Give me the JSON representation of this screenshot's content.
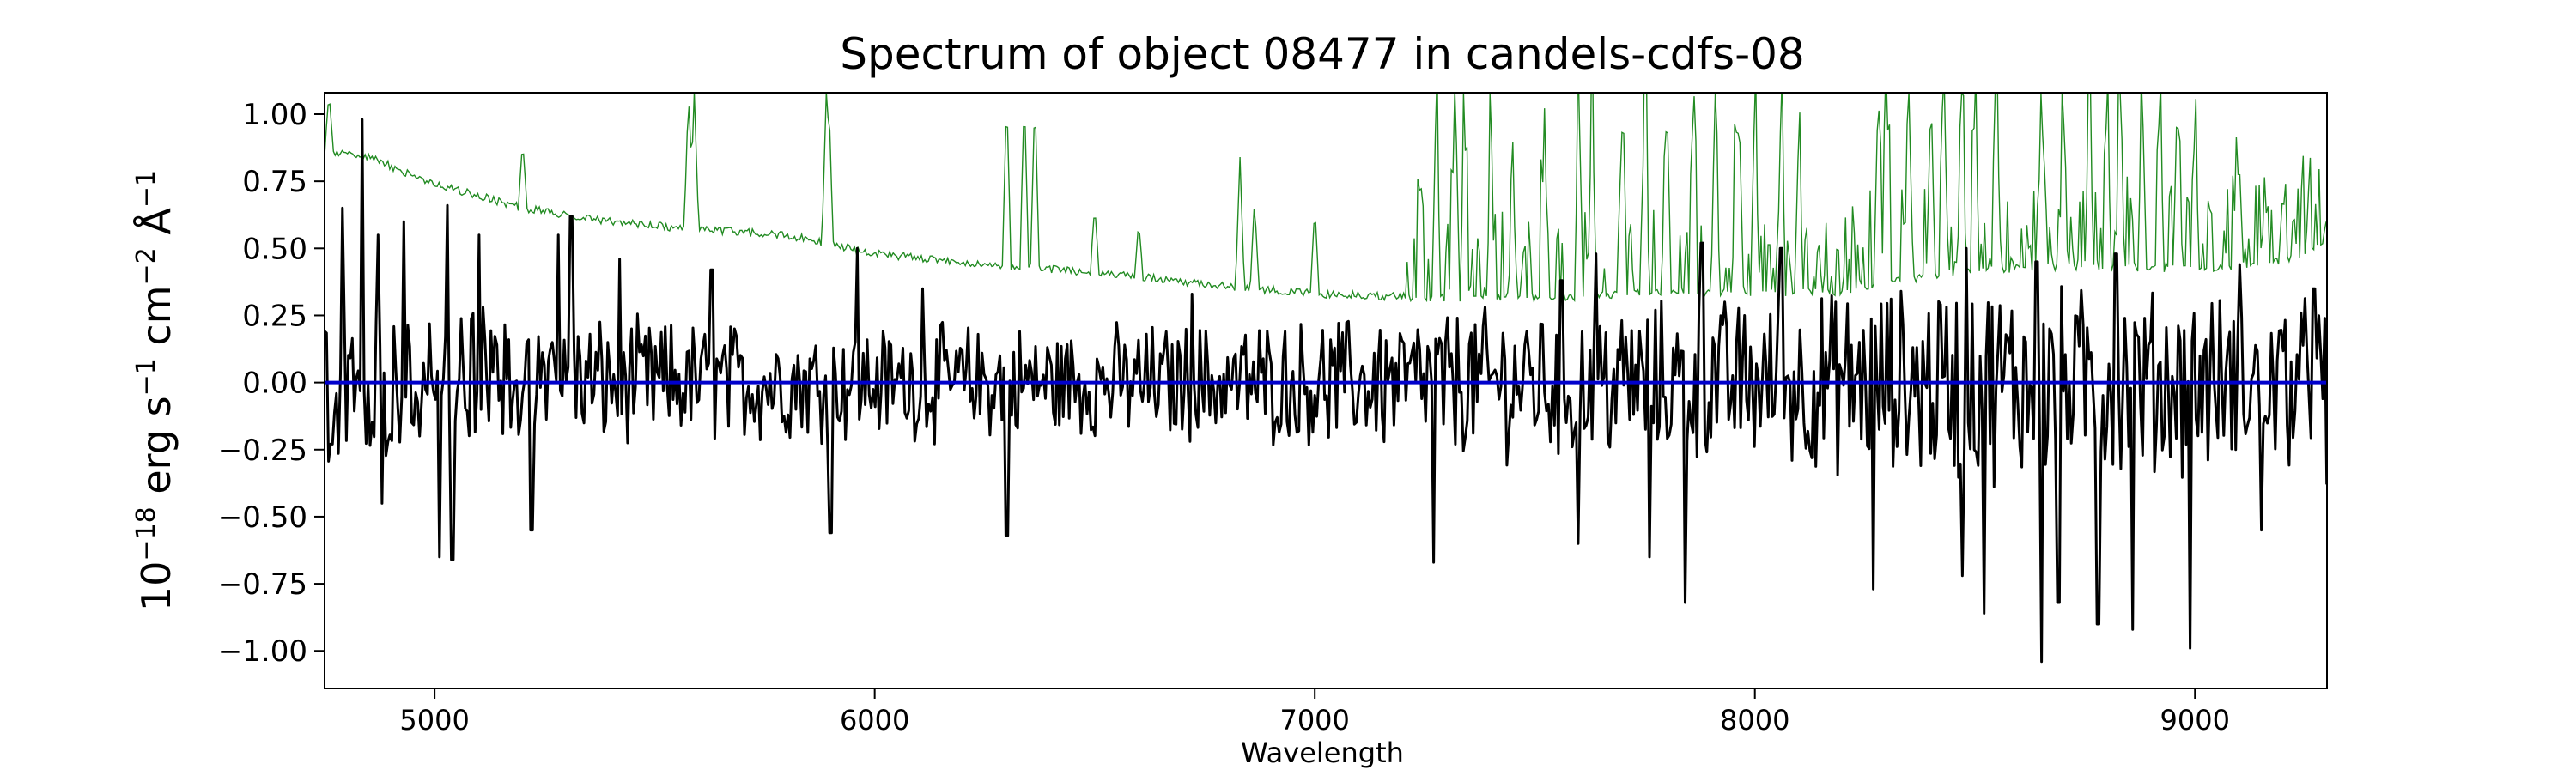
{
  "chart_data": {
    "type": "line",
    "title": "Spectrum of object 08477 in candels-cdfs-08",
    "xlabel": "Wavelength",
    "ylabel": {
      "prefix": "10",
      "prefix_exp": "−18",
      "unit1": " erg s",
      "unit1_exp": "−1",
      "unit2": " cm",
      "unit2_exp": "−2",
      "unit3": " Å",
      "unit3_exp": "−1"
    },
    "xlim": [
      4750,
      9300
    ],
    "ylim": [
      -1.14,
      1.08
    ],
    "xticks": [
      5000,
      6000,
      7000,
      8000,
      9000
    ],
    "yticks": [
      -1.0,
      -0.75,
      -0.5,
      -0.25,
      0.0,
      0.25,
      0.5,
      0.75,
      1.0
    ],
    "ytick_labels": [
      "−1.00",
      "−0.75",
      "−0.50",
      "−0.25",
      "0.00",
      "0.25",
      "0.50",
      "0.75",
      "1.00"
    ],
    "grid": false,
    "legend": "none",
    "series": [
      {
        "role": "noise",
        "color": "#228B22",
        "baseline": [
          [
            4750,
            0.86
          ],
          [
            4850,
            0.84
          ],
          [
            5000,
            0.74
          ],
          [
            5200,
            0.65
          ],
          [
            5400,
            0.6
          ],
          [
            5600,
            0.57
          ],
          [
            5800,
            0.55
          ],
          [
            6000,
            0.48
          ],
          [
            6200,
            0.45
          ],
          [
            6500,
            0.41
          ],
          [
            6800,
            0.36
          ],
          [
            7000,
            0.33
          ],
          [
            7200,
            0.32
          ],
          [
            7400,
            0.31
          ],
          [
            7600,
            0.32
          ],
          [
            7800,
            0.34
          ],
          [
            8000,
            0.33
          ],
          [
            8200,
            0.34
          ],
          [
            8400,
            0.4
          ],
          [
            8500,
            0.42
          ],
          [
            8700,
            0.43
          ],
          [
            9000,
            0.42
          ],
          [
            9200,
            0.45
          ],
          [
            9300,
            0.52
          ]
        ],
        "spikes": [
          [
            4760,
            1.08
          ],
          [
            5200,
            0.9
          ],
          [
            5577,
            1.08
          ],
          [
            5590,
            1.08
          ],
          [
            5890,
            1.08
          ],
          [
            5896,
            1.02
          ],
          [
            6300,
            1.08
          ],
          [
            6340,
            1.08
          ],
          [
            6364,
            1.08
          ],
          [
            6500,
            0.66
          ],
          [
            6600,
            0.6
          ],
          [
            6830,
            0.84
          ],
          [
            6863,
            0.68
          ],
          [
            7000,
            0.66
          ],
          [
            7240,
            0.82
          ],
          [
            7276,
            1.08
          ],
          [
            7316,
            0.9
          ],
          [
            7340,
            1.0
          ],
          [
            7400,
            0.86
          ],
          [
            7450,
            0.75
          ],
          [
            7520,
            0.8
          ],
          [
            7600,
            1.08
          ],
          [
            7630,
            1.08
          ],
          [
            7700,
            1.08
          ],
          [
            7750,
            1.08
          ],
          [
            7800,
            1.08
          ],
          [
            7860,
            1.08
          ],
          [
            7910,
            1.08
          ],
          [
            7960,
            1.08
          ],
          [
            8000,
            1.08
          ],
          [
            8060,
            1.08
          ],
          [
            8100,
            0.95
          ],
          [
            8280,
            1.08
          ],
          [
            8300,
            1.08
          ],
          [
            8350,
            1.08
          ],
          [
            8400,
            1.08
          ],
          [
            8430,
            1.08
          ],
          [
            8470,
            1.08
          ],
          [
            8500,
            1.08
          ],
          [
            8550,
            1.0
          ],
          [
            8650,
            0.97
          ],
          [
            8700,
            0.85
          ],
          [
            8760,
            1.08
          ],
          [
            8800,
            1.08
          ],
          [
            8830,
            1.08
          ],
          [
            8880,
            1.08
          ],
          [
            8920,
            1.08
          ],
          [
            8960,
            1.08
          ],
          [
            9000,
            0.98
          ],
          [
            9100,
            0.86
          ],
          [
            9200,
            0.72
          ],
          [
            9300,
            0.62
          ]
        ]
      },
      {
        "role": "model",
        "color": "#0000cc",
        "points": [
          [
            4750,
            0.0
          ],
          [
            9300,
            0.0
          ]
        ]
      },
      {
        "role": "flux",
        "color": "#000000",
        "envelope": [
          [
            4750,
            0.3
          ],
          [
            5000,
            0.25
          ],
          [
            5500,
            0.2
          ],
          [
            6000,
            0.18
          ],
          [
            6500,
            0.18
          ],
          [
            7000,
            0.2
          ],
          [
            7500,
            0.26
          ],
          [
            8000,
            0.28
          ],
          [
            8500,
            0.35
          ],
          [
            9000,
            0.3
          ],
          [
            9300,
            0.28
          ]
        ],
        "peaks": [
          [
            4790,
            0.65
          ],
          [
            4835,
            0.98
          ],
          [
            4870,
            0.55
          ],
          [
            4930,
            0.6
          ],
          [
            5030,
            0.66
          ],
          [
            5100,
            0.55
          ],
          [
            5280,
            0.55
          ],
          [
            5310,
            0.62
          ],
          [
            5420,
            0.46
          ],
          [
            5630,
            0.42
          ],
          [
            5900,
            0.6
          ],
          [
            5960,
            0.5
          ],
          [
            6110,
            0.35
          ],
          [
            6300,
            0.35
          ],
          [
            6720,
            0.33
          ],
          [
            7560,
            0.38
          ],
          [
            7640,
            0.48
          ],
          [
            7880,
            0.52
          ],
          [
            8060,
            0.5
          ],
          [
            8480,
            0.5
          ],
          [
            8520,
            0.6
          ],
          [
            8640,
            0.45
          ],
          [
            8820,
            0.48
          ],
          [
            9100,
            0.44
          ],
          [
            9270,
            0.35
          ]
        ],
        "troughs": [
          [
            4880,
            -0.45
          ],
          [
            5010,
            -0.65
          ],
          [
            5040,
            -0.66
          ],
          [
            5220,
            -0.55
          ],
          [
            5900,
            -0.56
          ],
          [
            6300,
            -0.57
          ],
          [
            7270,
            -0.67
          ],
          [
            7600,
            -0.6
          ],
          [
            7760,
            -0.65
          ],
          [
            7840,
            -0.82
          ],
          [
            8270,
            -0.77
          ],
          [
            8470,
            -0.72
          ],
          [
            8520,
            -0.86
          ],
          [
            8650,
            -1.04
          ],
          [
            8690,
            -0.82
          ],
          [
            8780,
            -0.9
          ],
          [
            8860,
            -0.92
          ],
          [
            8990,
            -0.99
          ],
          [
            9150,
            -0.55
          ],
          [
            9300,
            -0.38
          ]
        ]
      }
    ]
  }
}
